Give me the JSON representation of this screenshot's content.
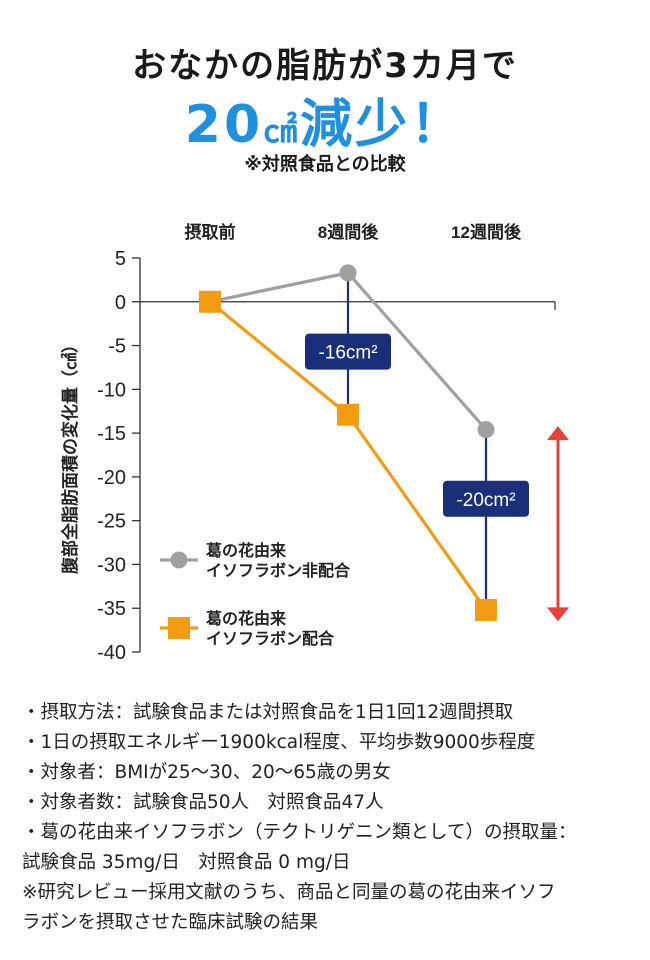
{
  "header": {
    "headline": "おなかの脂肪が3カ月で",
    "hero_value": "20",
    "hero_unit": "㎠",
    "hero_suffix": "減少！",
    "note": "※対照食品との比較"
  },
  "chart_data": {
    "type": "line",
    "categories": [
      "摂取前",
      "8週間後",
      "12週間後"
    ],
    "ylabel": "腹部全脂肪面積の変化量（㎠）",
    "ylim": [
      -40,
      5
    ],
    "yticks": [
      "5",
      "0",
      "-5",
      "-10",
      "-15",
      "-20",
      "-25",
      "-30",
      "-35",
      "-40"
    ],
    "series": [
      {
        "name_line1": "葛の花由来",
        "name_line2": "イソフラボン非配合",
        "marker": "circle",
        "color": "#a0a0a0",
        "values": [
          0,
          3.3,
          -14.6
        ]
      },
      {
        "name_line1": "葛の花由来",
        "name_line2": "イソフラボン配合",
        "marker": "square",
        "color": "#f39c12",
        "values": [
          0,
          -12.9,
          -35.2
        ]
      }
    ],
    "annotations": [
      {
        "text": "-16cm²",
        "category": "8週間後",
        "center_y": -5.7
      },
      {
        "text": "-20cm²",
        "category": "12週間後",
        "center_y": -22.5
      }
    ],
    "arrow_color": "#e8413a",
    "badge_color": "#1a2f7a"
  },
  "footnotes": [
    "・摂取方法：試験食品または対照食品を1日1回12週間摂取",
    "・1日の摂取エネルギー1900kcal程度、平均歩数9000歩程度",
    "・対象者：BMIが25～30、20～65歳の男女",
    "・対象者数：試験食品50人　対照食品47人",
    "・葛の花由来イソフラボン（テクトリゲニン類として）の摂取量：",
    "試験食品 35mg/日　対照食品 0 mg/日",
    "※研究レビュー採用文献のうち、商品と同量の葛の花由来イソフ",
    "ラボンを摂取させた臨床試験の結果"
  ]
}
